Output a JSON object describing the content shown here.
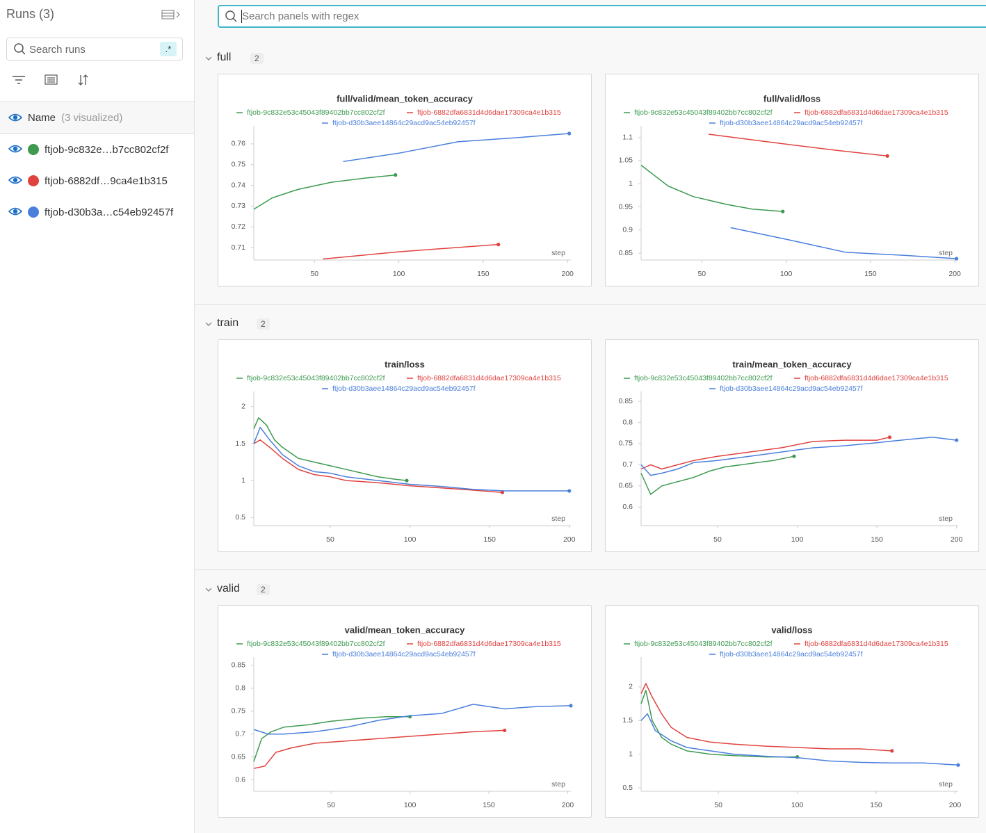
{
  "sidebar": {
    "title": "Runs (3)",
    "search_placeholder": "Search runs",
    "regex_toggle": ".*",
    "name_header": "Name",
    "visualized": "(3 visualized)",
    "runs": [
      {
        "name": "ftjob-9c832e…b7cc802cf2f",
        "color": "#3d9a50"
      },
      {
        "name": "ftjob-6882df…9ca4e1b315",
        "color": "#e0423e"
      },
      {
        "name": "ftjob-d30b3a…c54eb92457f",
        "color": "#4a7fdc"
      }
    ]
  },
  "panel_search_placeholder": "Search panels with regex",
  "sections": [
    {
      "title": "full",
      "count": 2
    },
    {
      "title": "train",
      "count": 2
    },
    {
      "title": "valid",
      "count": 2
    }
  ],
  "chart_data": [
    {
      "type": "line",
      "title": "full/valid/mean_token_accuracy",
      "x_label": "step",
      "xlim": [
        14,
        202
      ],
      "xticks": [
        50,
        100,
        150,
        200
      ],
      "ylim": [
        0.704,
        0.766
      ],
      "yticks": [
        0.71,
        0.72,
        0.73,
        0.74,
        0.75,
        0.76
      ],
      "series": [
        {
          "name": "ftjob-9c832e53c45043f89402bb7cc802cf2f",
          "color": "#3d9a50",
          "x": [
            14,
            25,
            40,
            60,
            80,
            98
          ],
          "values": [
            0.7285,
            0.734,
            0.738,
            0.7415,
            0.7435,
            0.745
          ]
        },
        {
          "name": "ftjob-6882dfa6831d4d6dae17309ca4e1b315",
          "color": "#e0423e",
          "x": [
            55,
            100,
            159
          ],
          "values": [
            0.7045,
            0.708,
            0.7115
          ]
        },
        {
          "name": "ftjob-d30b3aee14864c29acd9ac54eb92457f",
          "color": "#4a7fdc",
          "x": [
            67,
            100,
            135,
            170,
            201
          ],
          "values": [
            0.7515,
            0.7555,
            0.761,
            0.763,
            0.765
          ]
        }
      ]
    },
    {
      "type": "line",
      "title": "full/valid/loss",
      "x_label": "step",
      "xlim": [
        14,
        202
      ],
      "xticks": [
        50,
        100,
        150,
        200
      ],
      "ylim": [
        0.835,
        1.113
      ],
      "yticks": [
        0.85,
        0.9,
        0.95,
        1,
        1.05,
        1.1
      ],
      "series": [
        {
          "name": "ftjob-9c832e53c45043f89402bb7cc802cf2f",
          "color": "#3d9a50",
          "x": [
            14,
            30,
            45,
            65,
            80,
            98
          ],
          "values": [
            1.04,
            0.995,
            0.972,
            0.955,
            0.945,
            0.94
          ]
        },
        {
          "name": "ftjob-6882dfa6831d4d6dae17309ca4e1b315",
          "color": "#e0423e",
          "x": [
            54,
            90,
            130,
            160
          ],
          "values": [
            1.107,
            1.09,
            1.072,
            1.06
          ]
        },
        {
          "name": "ftjob-d30b3aee14864c29acd9ac54eb92457f",
          "color": "#4a7fdc",
          "x": [
            67,
            100,
            135,
            170,
            201
          ],
          "values": [
            0.905,
            0.88,
            0.852,
            0.845,
            0.838
          ]
        }
      ]
    },
    {
      "type": "line",
      "title": "train/loss",
      "x_label": "step",
      "xlim": [
        2,
        201
      ],
      "xticks": [
        50,
        100,
        150,
        200
      ],
      "ylim": [
        0.39,
        2.13
      ],
      "yticks": [
        0.5,
        1,
        1.5,
        2
      ],
      "series": [
        {
          "name": "ftjob-9c832e53c45043f89402bb7cc802cf2f",
          "color": "#3d9a50",
          "x": [
            2,
            5,
            10,
            15,
            20,
            30,
            40,
            50,
            60,
            70,
            80,
            90,
            98
          ],
          "values": [
            1.7,
            1.85,
            1.75,
            1.55,
            1.45,
            1.3,
            1.25,
            1.2,
            1.15,
            1.1,
            1.05,
            1.02,
            1.0
          ]
        },
        {
          "name": "ftjob-6882dfa6831d4d6dae17309ca4e1b315",
          "color": "#e0423e",
          "x": [
            2,
            6,
            12,
            20,
            30,
            40,
            50,
            60,
            80,
            100,
            120,
            140,
            158
          ],
          "values": [
            1.5,
            1.55,
            1.45,
            1.3,
            1.15,
            1.08,
            1.05,
            1.0,
            0.97,
            0.93,
            0.9,
            0.87,
            0.84
          ]
        },
        {
          "name": "ftjob-d30b3aee14864c29acd9ac54eb92457f",
          "color": "#4a7fdc",
          "x": [
            2,
            6,
            12,
            20,
            30,
            40,
            50,
            60,
            80,
            100,
            120,
            140,
            160,
            180,
            200
          ],
          "values": [
            1.5,
            1.72,
            1.55,
            1.35,
            1.2,
            1.12,
            1.1,
            1.05,
            1.0,
            0.95,
            0.92,
            0.88,
            0.86,
            0.86,
            0.86
          ]
        }
      ]
    },
    {
      "type": "line",
      "title": "train/mean_token_accuracy",
      "x_label": "step",
      "xlim": [
        2,
        201
      ],
      "xticks": [
        50,
        100,
        150,
        200
      ],
      "ylim": [
        0.556,
        0.86
      ],
      "yticks": [
        0.6,
        0.65,
        0.7,
        0.75,
        0.8,
        0.85
      ],
      "series": [
        {
          "name": "ftjob-9c832e53c45043f89402bb7cc802cf2f",
          "color": "#3d9a50",
          "x": [
            2,
            8,
            15,
            25,
            35,
            45,
            55,
            65,
            75,
            85,
            98
          ],
          "values": [
            0.68,
            0.63,
            0.65,
            0.66,
            0.67,
            0.685,
            0.695,
            0.7,
            0.705,
            0.71,
            0.72
          ]
        },
        {
          "name": "ftjob-6882dfa6831d4d6dae17309ca4e1b315",
          "color": "#e0423e",
          "x": [
            2,
            8,
            15,
            25,
            35,
            50,
            70,
            90,
            110,
            130,
            150,
            158
          ],
          "values": [
            0.69,
            0.7,
            0.69,
            0.7,
            0.71,
            0.72,
            0.73,
            0.74,
            0.755,
            0.758,
            0.758,
            0.765
          ]
        },
        {
          "name": "ftjob-d30b3aee14864c29acd9ac54eb92457f",
          "color": "#4a7fdc",
          "x": [
            2,
            8,
            15,
            25,
            35,
            50,
            70,
            90,
            110,
            130,
            150,
            170,
            185,
            200
          ],
          "values": [
            0.7,
            0.675,
            0.68,
            0.69,
            0.705,
            0.71,
            0.72,
            0.73,
            0.74,
            0.745,
            0.752,
            0.76,
            0.765,
            0.758
          ]
        }
      ]
    },
    {
      "type": "line",
      "title": "valid/mean_token_accuracy",
      "x_label": "step",
      "xlim": [
        1,
        202
      ],
      "xticks": [
        50,
        100,
        150,
        200
      ],
      "ylim": [
        0.575,
        0.856
      ],
      "yticks": [
        0.6,
        0.65,
        0.7,
        0.75,
        0.8,
        0.85
      ],
      "series": [
        {
          "name": "ftjob-9c832e53c45043f89402bb7cc802cf2f",
          "color": "#3d9a50",
          "x": [
            1,
            6,
            12,
            20,
            35,
            50,
            70,
            85,
            100
          ],
          "values": [
            0.64,
            0.69,
            0.705,
            0.715,
            0.72,
            0.728,
            0.735,
            0.738,
            0.738
          ]
        },
        {
          "name": "ftjob-6882dfa6831d4d6dae17309ca4e1b315",
          "color": "#e0423e",
          "x": [
            1,
            8,
            15,
            25,
            40,
            60,
            80,
            100,
            120,
            140,
            160
          ],
          "values": [
            0.625,
            0.63,
            0.66,
            0.67,
            0.68,
            0.685,
            0.69,
            0.695,
            0.7,
            0.705,
            0.708
          ]
        },
        {
          "name": "ftjob-d30b3aee14864c29acd9ac54eb92457f",
          "color": "#4a7fdc",
          "x": [
            1,
            10,
            20,
            40,
            60,
            80,
            100,
            120,
            140,
            160,
            180,
            202
          ],
          "values": [
            0.71,
            0.7,
            0.7,
            0.705,
            0.715,
            0.73,
            0.74,
            0.745,
            0.765,
            0.755,
            0.76,
            0.762
          ]
        }
      ]
    },
    {
      "type": "line",
      "title": "valid/loss",
      "x_label": "step",
      "xlim": [
        1,
        202
      ],
      "xticks": [
        50,
        100,
        150,
        200
      ],
      "ylim": [
        0.45,
        2.36
      ],
      "yticks": [
        0.5,
        1,
        1.5,
        2
      ],
      "series": [
        {
          "name": "ftjob-9c832e53c45043f89402bb7cc802cf2f",
          "color": "#3d9a50",
          "x": [
            1,
            4,
            8,
            14,
            20,
            30,
            45,
            60,
            80,
            100
          ],
          "values": [
            1.75,
            1.95,
            1.5,
            1.25,
            1.15,
            1.05,
            1.0,
            0.98,
            0.96,
            0.96
          ]
        },
        {
          "name": "ftjob-6882dfa6831d4d6dae17309ca4e1b315",
          "color": "#e0423e",
          "x": [
            1,
            4,
            8,
            14,
            20,
            30,
            45,
            60,
            80,
            100,
            120,
            140,
            160
          ],
          "values": [
            1.9,
            2.05,
            1.85,
            1.6,
            1.4,
            1.25,
            1.18,
            1.15,
            1.12,
            1.1,
            1.08,
            1.08,
            1.05
          ]
        },
        {
          "name": "ftjob-d30b3aee14864c29acd9ac54eb92457f",
          "color": "#4a7fdc",
          "x": [
            1,
            5,
            10,
            20,
            30,
            45,
            60,
            80,
            100,
            120,
            140,
            160,
            180,
            202
          ],
          "values": [
            1.5,
            1.6,
            1.35,
            1.2,
            1.1,
            1.05,
            1.0,
            0.97,
            0.95,
            0.9,
            0.88,
            0.87,
            0.87,
            0.84
          ]
        }
      ]
    }
  ]
}
